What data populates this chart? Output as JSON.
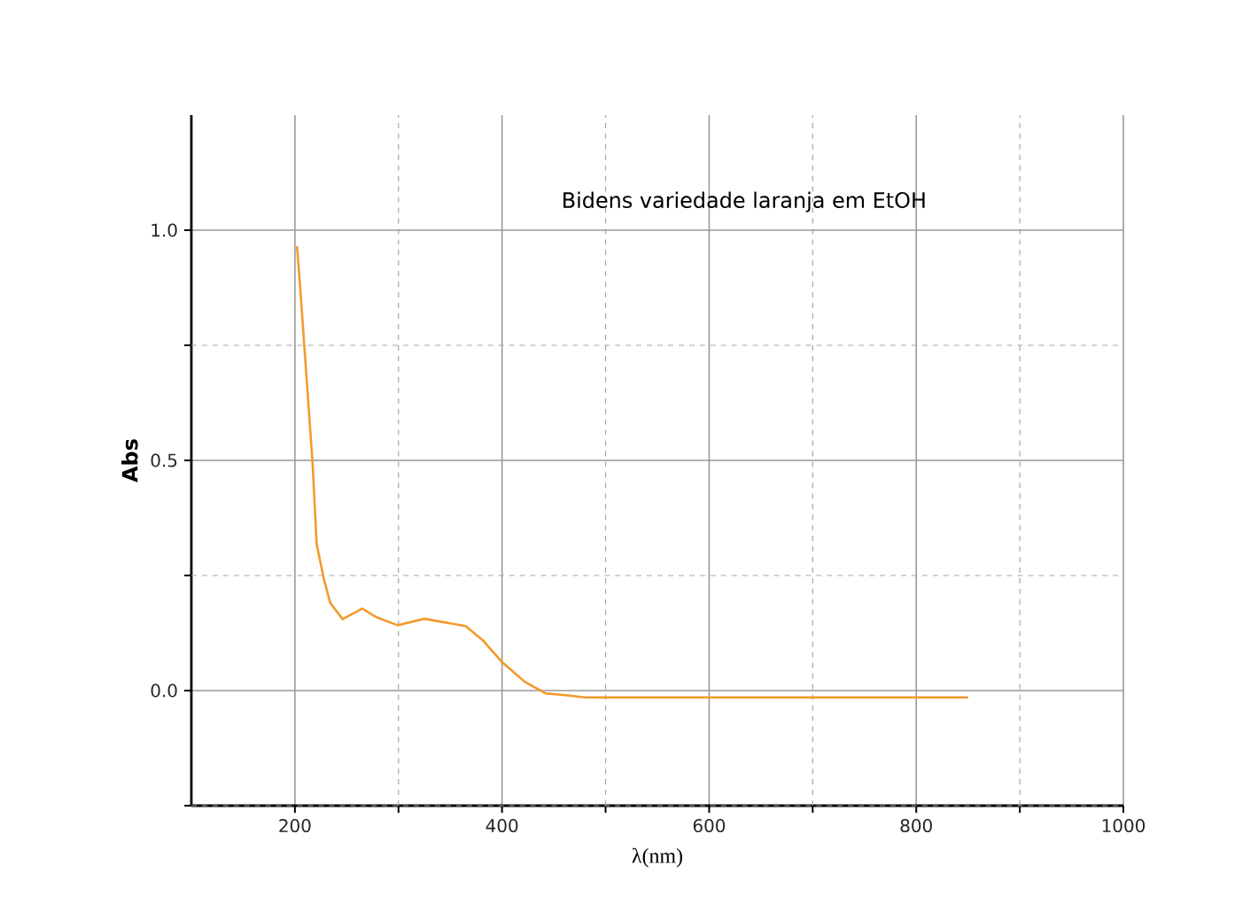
{
  "chart_data": {
    "type": "line",
    "title": "Bidens variedade laranja em EtOH",
    "xlabel": "λ(nm)",
    "ylabel": "Abs",
    "x": [
      202,
      205,
      211,
      217,
      221,
      228,
      234,
      246,
      265,
      279,
      299,
      325,
      365,
      382,
      399,
      422,
      442,
      462,
      480,
      550,
      650,
      750,
      850
    ],
    "series": [
      {
        "color": "#f39a2c",
        "values": [
          0.965,
          0.878,
          0.687,
          0.496,
          0.318,
          0.242,
          0.191,
          0.155,
          0.178,
          0.159,
          0.142,
          0.156,
          0.14,
          0.108,
          0.064,
          0.019,
          -0.006,
          -0.01,
          -0.015,
          -0.015,
          -0.015,
          -0.015,
          -0.015
        ]
      }
    ],
    "xlim": [
      100,
      1000
    ],
    "ylim": [
      -0.25,
      1.25
    ],
    "xticks": [
      200,
      {
        "value": 300,
        "label": null
      },
      400,
      {
        "value": 500,
        "label": null
      },
      600,
      {
        "value": 700,
        "label": null
      },
      800,
      {
        "value": 900,
        "label": null
      },
      1000
    ],
    "yticks": [
      {
        "value": -0.25,
        "label": null
      },
      {
        "value": 0,
        "label": "0.0"
      },
      {
        "value": 0.25,
        "label": null
      },
      {
        "value": 0.5,
        "label": "0.5"
      },
      {
        "value": 0.75,
        "label": null
      },
      {
        "value": 1,
        "label": "1.0"
      }
    ],
    "grid": true,
    "marker": "none",
    "line_style": "solid"
  }
}
